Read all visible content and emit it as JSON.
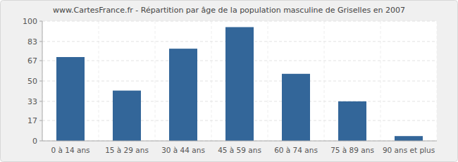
{
  "chart_data": {
    "type": "bar",
    "title": "www.CartesFrance.fr - Répartition par âge de la population masculine de Griselles en 2007",
    "categories": [
      "0 à 14 ans",
      "15 à 29 ans",
      "30 à 44 ans",
      "45 à 59 ans",
      "60 à 74 ans",
      "75 à 89 ans",
      "90 ans et plus"
    ],
    "values": [
      70,
      42,
      77,
      95,
      56,
      33,
      4
    ],
    "color": "#336699",
    "ylim": [
      0,
      100
    ],
    "yticks": [
      0,
      17,
      33,
      50,
      67,
      83,
      100
    ],
    "grid": true
  }
}
